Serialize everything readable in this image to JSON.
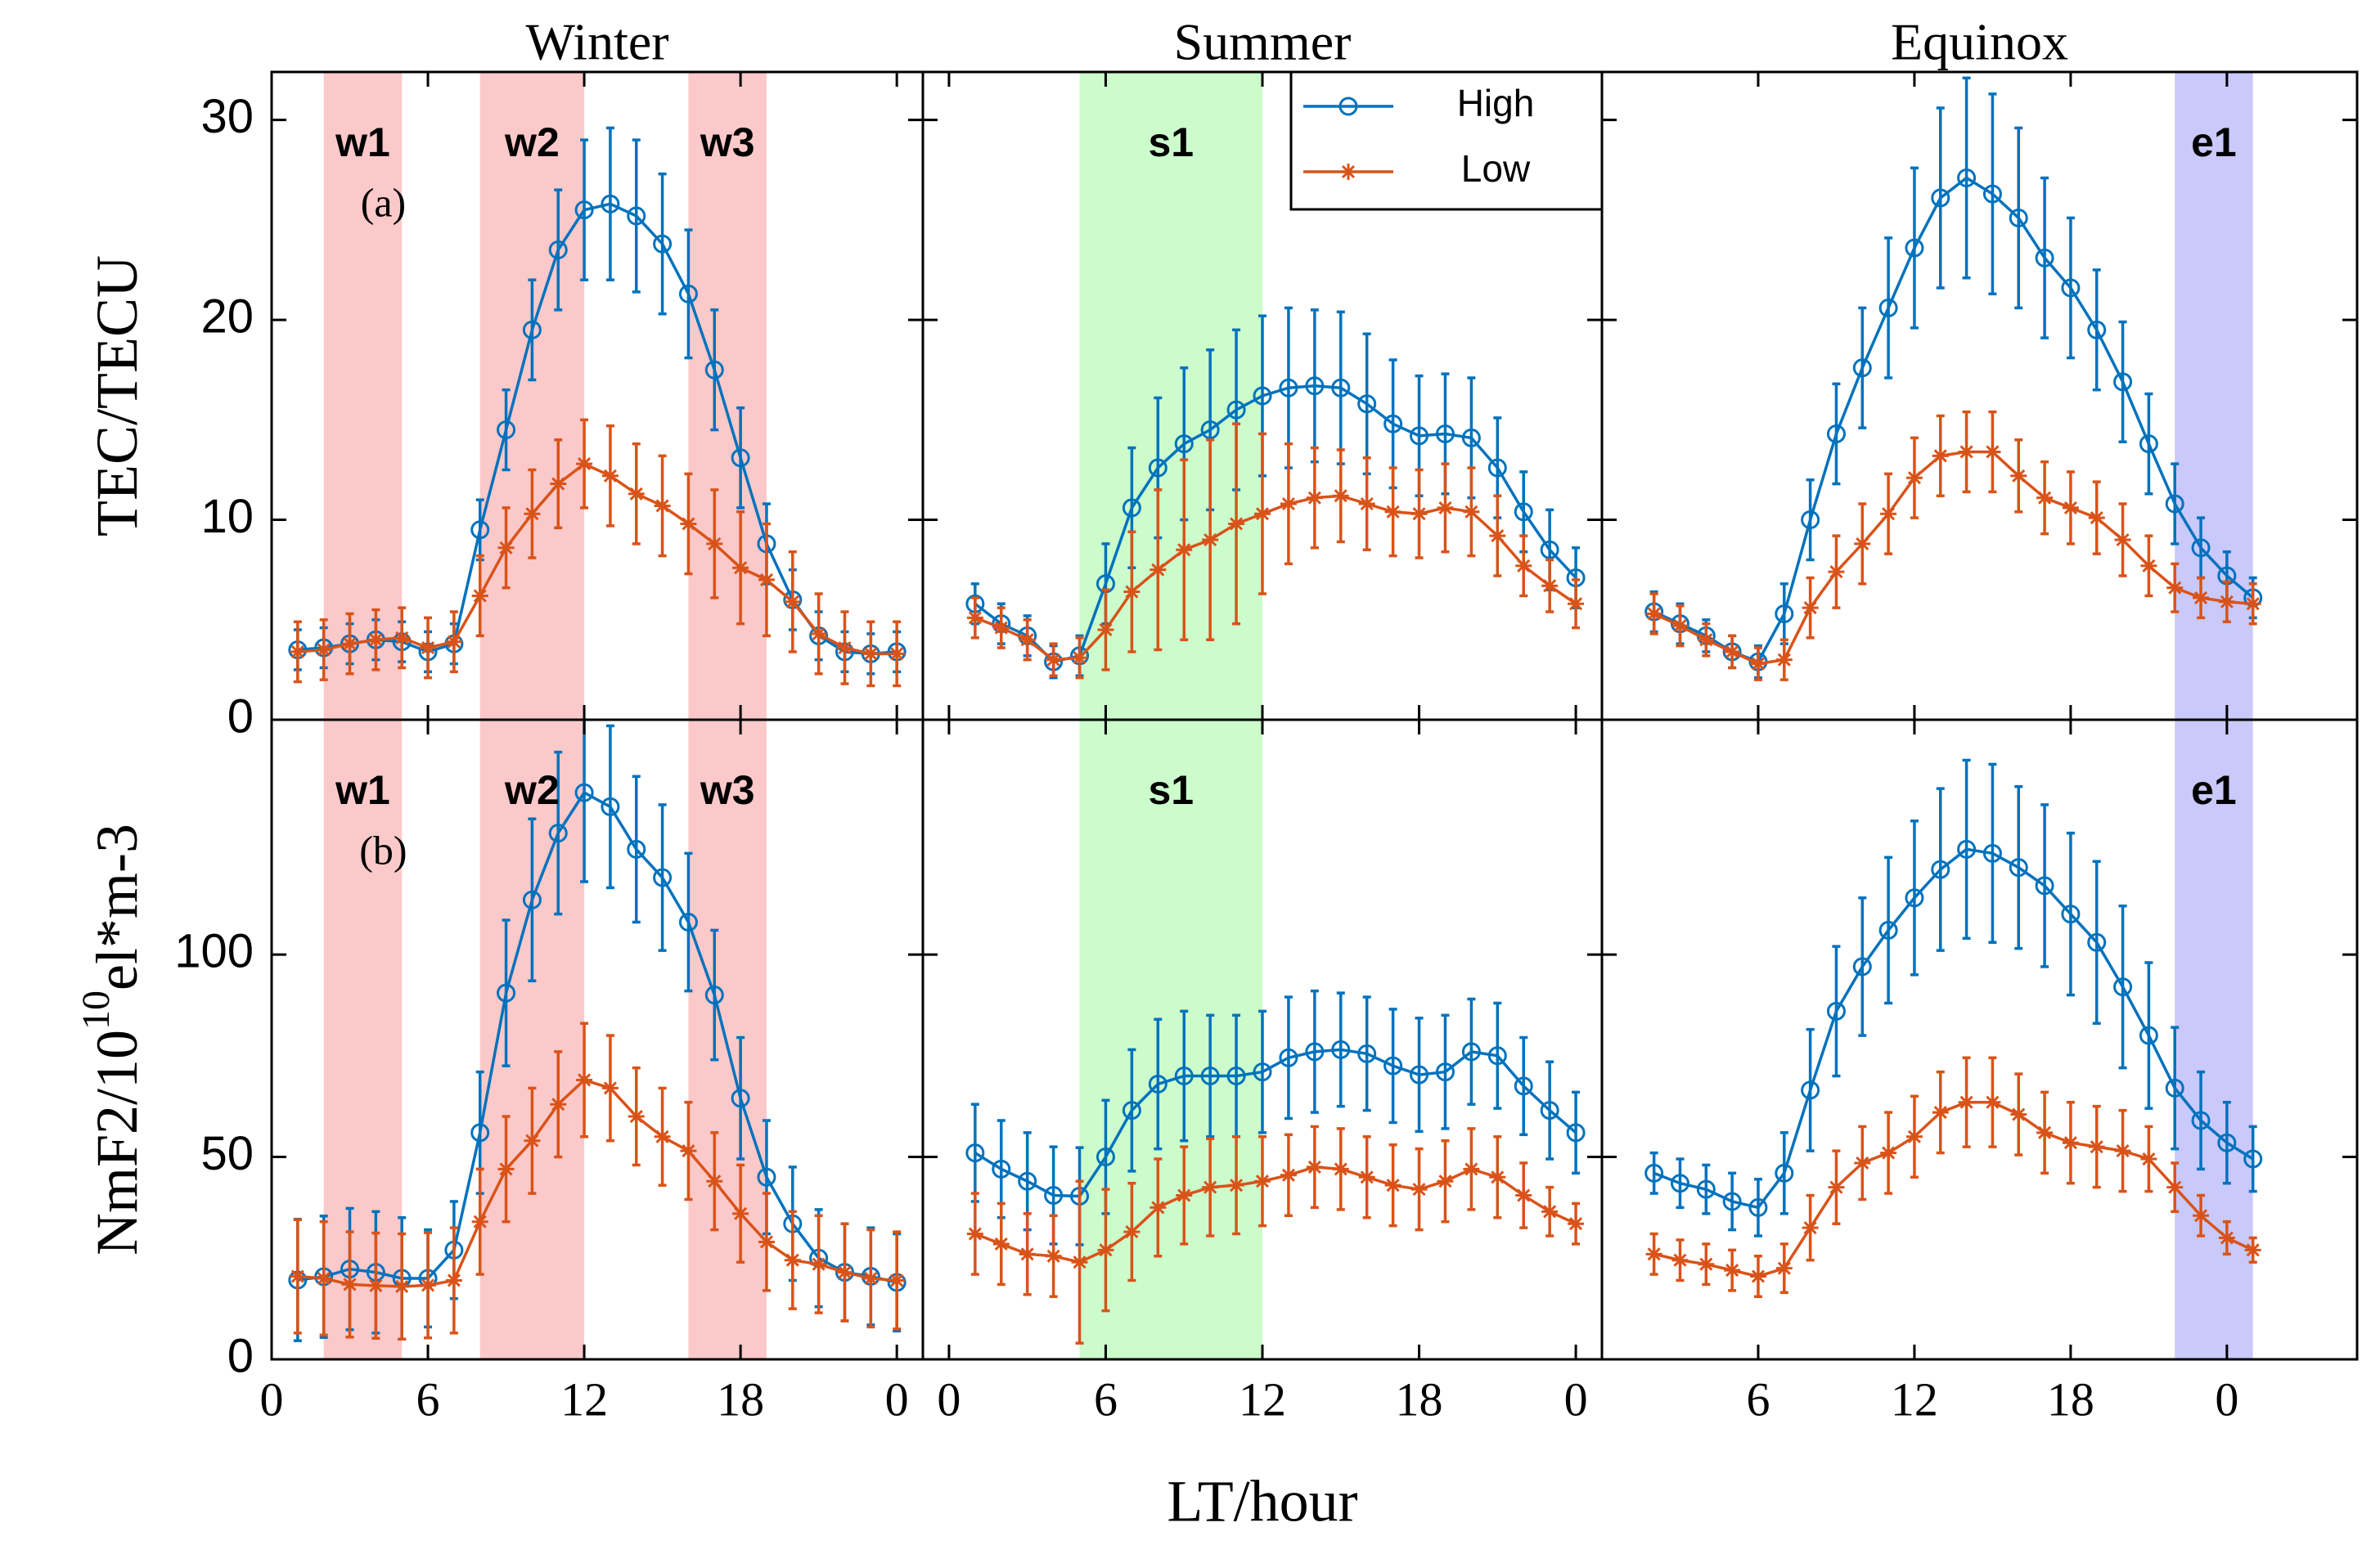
{
  "chart_data": [
    {
      "type": "line",
      "title": "Winter",
      "ylabel": "TEC/TECU",
      "annotation": "(a)",
      "x": [
        1,
        2,
        3,
        4,
        5,
        6,
        7,
        8,
        9,
        10,
        11,
        12,
        13,
        14,
        15,
        16,
        17,
        18,
        19,
        20,
        21,
        22,
        23,
        24
      ],
      "xlim": [
        0,
        25
      ],
      "ylim": [
        0,
        32.4
      ],
      "yticks": [
        0,
        10,
        20,
        30
      ],
      "bands": [
        {
          "label": "w1",
          "x": [
            2,
            5
          ],
          "color": "#fbc9c9"
        },
        {
          "label": "w2",
          "x": [
            8,
            12
          ],
          "color": "#fbc9c9"
        },
        {
          "label": "w3",
          "x": [
            16,
            19
          ],
          "color": "#fbc9c9"
        }
      ],
      "series": [
        {
          "color": "#0072BD",
          "marker": "o",
          "values": [
            3.5,
            3.6,
            3.8,
            4.0,
            3.9,
            3.4,
            3.8,
            9.5,
            14.5,
            19.5,
            23.5,
            25.5,
            25.8,
            25.2,
            23.8,
            21.3,
            17.5,
            13.1,
            8.8,
            6.0,
            4.2,
            3.4,
            3.3,
            3.4
          ],
          "errors": [
            1,
            1,
            1,
            1,
            1,
            1,
            1,
            1.5,
            2,
            2.5,
            3,
            3.5,
            3.8,
            3.8,
            3.5,
            3.2,
            3,
            2.5,
            2,
            1.5,
            1.2,
            1,
            1,
            1
          ]
        },
        {
          "color": "#D95319",
          "marker": "*",
          "values": [
            3.4,
            3.5,
            3.8,
            4.0,
            4.1,
            3.6,
            3.9,
            6.2,
            8.6,
            10.3,
            11.8,
            12.8,
            12.2,
            11.3,
            10.7,
            9.8,
            8.8,
            7.6,
            7.0,
            5.9,
            4.3,
            3.6,
            3.3,
            3.3
          ],
          "errors": [
            1.5,
            1.5,
            1.5,
            1.5,
            1.5,
            1.5,
            1.5,
            2,
            2,
            2.2,
            2.2,
            2.2,
            2.5,
            2.5,
            2.5,
            2.5,
            2.7,
            2.8,
            2.8,
            2.5,
            2,
            1.8,
            1.6,
            1.6
          ]
        }
      ]
    },
    {
      "type": "line",
      "title": "Summer",
      "legend": "upper right",
      "x": [
        1,
        2,
        3,
        4,
        5,
        6,
        7,
        8,
        9,
        10,
        11,
        12,
        13,
        14,
        15,
        16,
        17,
        18,
        19,
        20,
        21,
        22,
        23,
        24
      ],
      "xlim": [
        -1,
        25
      ],
      "ylim": [
        0,
        32.4
      ],
      "bands": [
        {
          "label": "s1",
          "x": [
            5,
            12
          ],
          "color": "#ccfccc"
        }
      ],
      "series": [
        {
          "name": "High",
          "color": "#0072BD",
          "marker": "o",
          "values": [
            5.8,
            4.8,
            4.2,
            2.9,
            3.2,
            6.8,
            10.6,
            12.6,
            13.8,
            14.5,
            15.5,
            16.2,
            16.6,
            16.7,
            16.6,
            15.8,
            14.8,
            14.2,
            14.3,
            14.1,
            12.6,
            10.4,
            8.5,
            7.1
          ],
          "errors": [
            1,
            1,
            1,
            0.8,
            1,
            2,
            3,
            3.5,
            3.8,
            4,
            4,
            4,
            4,
            3.8,
            3.8,
            3.5,
            3.2,
            3,
            3,
            3,
            2.5,
            2,
            2,
            1.5
          ]
        },
        {
          "name": "Low",
          "color": "#D95319",
          "marker": "*",
          "values": [
            5.1,
            4.6,
            4.0,
            3.0,
            3.1,
            4.5,
            6.4,
            7.5,
            8.5,
            9.0,
            9.8,
            10.3,
            10.8,
            11.1,
            11.2,
            10.8,
            10.4,
            10.3,
            10.6,
            10.4,
            9.2,
            7.7,
            6.7,
            5.8
          ],
          "errors": [
            1,
            1,
            1,
            0.8,
            1,
            2,
            3,
            4,
            4.5,
            5,
            5,
            4,
            3,
            2.5,
            2.3,
            2.3,
            2.2,
            2.2,
            2.2,
            2.2,
            2,
            1.5,
            1.3,
            1.2
          ]
        }
      ]
    },
    {
      "type": "line",
      "title": "Equinox",
      "x": [
        2,
        3,
        4,
        5,
        6,
        7,
        8,
        9,
        10,
        11,
        12,
        13,
        14,
        15,
        16,
        17,
        18,
        19,
        20,
        21,
        22,
        23,
        24,
        25
      ],
      "xlim": [
        0,
        29
      ],
      "ylim": [
        0,
        32.4
      ],
      "bands": [
        {
          "label": "e1",
          "x": [
            22,
            25
          ],
          "color": "#c9c9fb"
        }
      ],
      "series": [
        {
          "color": "#0072BD",
          "marker": "o",
          "values": [
            5.4,
            4.8,
            4.2,
            3.4,
            2.9,
            5.3,
            10.0,
            14.3,
            17.6,
            20.6,
            23.6,
            26.1,
            27.1,
            26.3,
            25.1,
            23.1,
            21.6,
            19.5,
            16.9,
            13.8,
            10.8,
            8.6,
            7.2,
            6.1
          ],
          "errors": [
            1,
            1,
            0.8,
            0.8,
            0.8,
            1.5,
            2,
            2.5,
            3,
            3.5,
            4,
            4.5,
            5,
            5,
            4.5,
            4,
            3.5,
            3,
            3,
            2.5,
            2,
            1.5,
            1.2,
            1
          ]
        },
        {
          "color": "#D95319",
          "marker": "*",
          "values": [
            5.3,
            4.7,
            4.0,
            3.4,
            2.8,
            3.0,
            5.6,
            7.4,
            8.8,
            10.3,
            12.1,
            13.2,
            13.4,
            13.4,
            12.2,
            11.1,
            10.6,
            10.1,
            9.0,
            7.7,
            6.6,
            6.1,
            5.9,
            5.8
          ],
          "errors": [
            1,
            1,
            0.8,
            0.8,
            0.8,
            1,
            1.5,
            1.8,
            2,
            2,
            2,
            2,
            2,
            2,
            1.8,
            1.8,
            1.8,
            1.8,
            1.8,
            1.5,
            1.2,
            1,
            1,
            1
          ]
        }
      ]
    },
    {
      "type": "line",
      "ylabel": "NmF2/10",
      "ylabel_sup": "10",
      "ylabel_end": "el*m-3",
      "annotation": "(b)",
      "x": [
        1,
        2,
        3,
        4,
        5,
        6,
        7,
        8,
        9,
        10,
        11,
        12,
        13,
        14,
        15,
        16,
        17,
        18,
        19,
        20,
        21,
        22,
        23,
        24
      ],
      "xlim": [
        0,
        25
      ],
      "ylim": [
        0,
        158
      ],
      "yticks": [
        0,
        50,
        100
      ],
      "xticks": [
        0,
        6,
        12,
        18,
        {
          "value": 24,
          "label": "0"
        }
      ],
      "bands": [
        {
          "label": "w1",
          "x": [
            2,
            5
          ],
          "color": "#fbc9c9"
        },
        {
          "label": "w2",
          "x": [
            8,
            12
          ],
          "color": "#fbc9c9"
        },
        {
          "label": "w3",
          "x": [
            16,
            19
          ],
          "color": "#fbc9c9"
        }
      ],
      "series": [
        {
          "color": "#0072BD",
          "marker": "o",
          "values": [
            19.6,
            20.4,
            22.3,
            21.5,
            20,
            20,
            27,
            56,
            90.5,
            113.5,
            130,
            140,
            136.5,
            126,
            119,
            108,
            90,
            64.5,
            45,
            33.5,
            25,
            21.5,
            20.5,
            19
          ],
          "errors": [
            15,
            15,
            15,
            15,
            15,
            12,
            12,
            15,
            18,
            20,
            20,
            22,
            20,
            18,
            18,
            17,
            16,
            15,
            14,
            14,
            12,
            12,
            12,
            12
          ]
        },
        {
          "color": "#D95319",
          "marker": "*",
          "values": [
            20.5,
            20,
            18.5,
            18.2,
            18,
            18.3,
            19.5,
            34,
            47,
            54,
            63,
            69,
            67,
            60,
            55,
            51.5,
            44,
            36,
            29,
            24.5,
            23.5,
            21.5,
            20,
            19.5
          ],
          "errors": [
            14,
            14,
            13,
            13,
            13,
            13,
            13,
            13,
            13,
            13,
            13,
            14,
            13,
            12,
            12,
            12,
            12,
            12,
            12,
            12,
            12,
            12,
            12,
            12
          ]
        }
      ]
    },
    {
      "type": "line",
      "xlabel": "LT/hour",
      "x": [
        1,
        2,
        3,
        4,
        5,
        6,
        7,
        8,
        9,
        10,
        11,
        12,
        13,
        14,
        15,
        16,
        17,
        18,
        19,
        20,
        21,
        22,
        23,
        24
      ],
      "xlim": [
        -1,
        25
      ],
      "ylim": [
        0,
        158
      ],
      "xticks": [
        0,
        6,
        12,
        18,
        {
          "value": 24,
          "label": "0"
        }
      ],
      "bands": [
        {
          "label": "s1",
          "x": [
            5,
            12
          ],
          "color": "#ccfccc"
        }
      ],
      "series": [
        {
          "color": "#0072BD",
          "marker": "o",
          "values": [
            51,
            47,
            44,
            40.5,
            40.3,
            50,
            61.5,
            68,
            70,
            70,
            70,
            71,
            74.5,
            76,
            76.5,
            75.5,
            72.5,
            70.3,
            71,
            76,
            75,
            67.5,
            61.5,
            56
          ],
          "errors": [
            12,
            12,
            12,
            12,
            12,
            14,
            15,
            16,
            16,
            15,
            15,
            15,
            15,
            15,
            14,
            14,
            14,
            14,
            14,
            13,
            13,
            12,
            12,
            10
          ]
        },
        {
          "color": "#D95319",
          "marker": "*",
          "values": [
            31,
            28.5,
            26,
            25.5,
            24,
            27,
            31.5,
            37.5,
            40.5,
            42.5,
            43,
            44,
            45.5,
            47.5,
            47,
            45,
            43,
            42,
            44,
            47,
            45,
            40.5,
            36.5,
            33.5
          ],
          "errors": [
            10,
            10,
            10,
            10,
            20,
            15,
            12,
            12,
            12,
            12,
            12,
            11,
            10,
            10,
            10,
            10,
            10,
            10,
            10,
            10,
            10,
            8,
            6,
            5
          ]
        }
      ]
    },
    {
      "type": "line",
      "x": [
        2,
        3,
        4,
        5,
        6,
        7,
        8,
        9,
        10,
        11,
        12,
        13,
        14,
        15,
        16,
        17,
        18,
        19,
        20,
        21,
        22,
        23,
        24,
        25
      ],
      "xlim": [
        0,
        29
      ],
      "ylim": [
        0,
        158
      ],
      "xticks": [
        6,
        12,
        18,
        {
          "value": 24,
          "label": "0"
        }
      ],
      "bands": [
        {
          "label": "e1",
          "x": [
            22,
            25
          ],
          "color": "#c9c9fb"
        }
      ],
      "series": [
        {
          "color": "#0072BD",
          "marker": "o",
          "values": [
            46,
            43.5,
            42,
            39,
            37.5,
            46,
            66.5,
            86,
            97,
            106,
            114,
            121,
            126,
            125,
            121.5,
            117,
            110,
            103,
            92,
            80,
            67,
            59,
            53.5,
            49.5
          ],
          "errors": [
            5,
            6,
            6,
            7,
            7,
            10,
            15,
            16,
            17,
            18,
            19,
            20,
            22,
            22,
            20,
            20,
            20,
            20,
            20,
            18,
            15,
            12,
            10,
            8
          ]
        },
        {
          "color": "#D95319",
          "marker": "*",
          "values": [
            26,
            24.5,
            23.5,
            22,
            20.5,
            22.5,
            32.5,
            42.5,
            48.5,
            51,
            55,
            61,
            63.5,
            63.5,
            60.5,
            56,
            53.5,
            52.5,
            51.5,
            49.5,
            42.5,
            35.5,
            30,
            27
          ],
          "errors": [
            5,
            5,
            5,
            5,
            5,
            6,
            8,
            9,
            9,
            10,
            10,
            10,
            11,
            11,
            10,
            10,
            10,
            10,
            10,
            8,
            6,
            5,
            4,
            3
          ]
        }
      ]
    }
  ]
}
